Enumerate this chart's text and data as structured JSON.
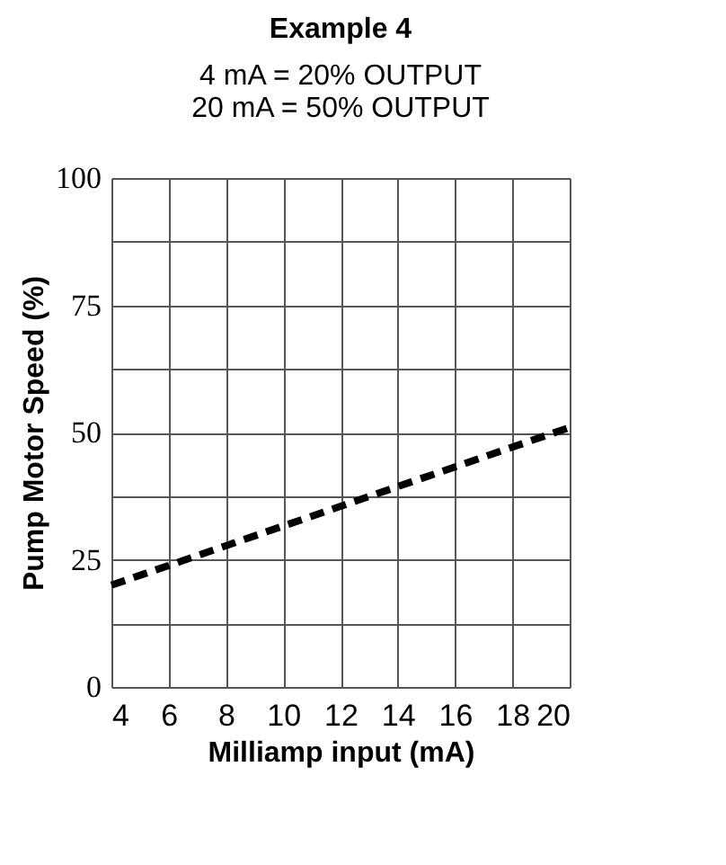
{
  "chart_data": {
    "type": "line",
    "title": "Example 4",
    "subtitle": "4 mA = 20% OUTPUT\n20 mA = 50% OUTPUT",
    "xlabel": "Milliamp input (mA)",
    "ylabel": "Pump Motor Speed (%)",
    "x": [
      4,
      20
    ],
    "series": [
      {
        "color": "#000000",
        "values": [
          20,
          51
        ]
      }
    ],
    "xlim": [
      4,
      20
    ],
    "xticks": [
      4,
      6,
      8,
      10,
      12,
      14,
      16,
      18,
      20
    ],
    "ylim": [
      0,
      100
    ],
    "yticks": [
      0,
      {
        "value": 12.5,
        "label": null
      },
      25,
      {
        "value": 37.5,
        "label": null
      },
      50,
      {
        "value": 62.5,
        "label": null
      },
      75,
      {
        "value": 87.5,
        "label": null
      },
      100
    ],
    "grid": true,
    "line_style": "dashed",
    "marker": "none",
    "legend": false
  }
}
